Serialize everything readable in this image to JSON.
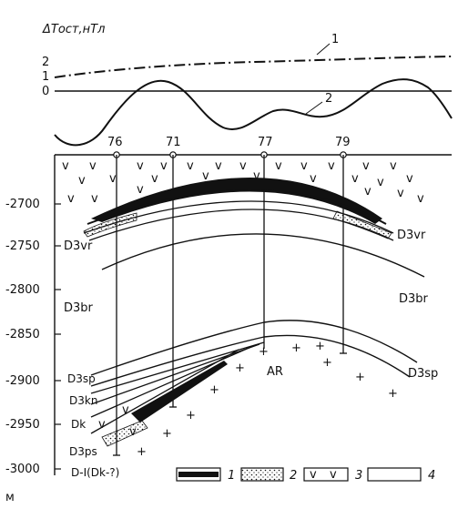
{
  "header": {
    "y_axis_title": "ΔTост,нТл",
    "anomaly_ticks": [
      "2",
      "1",
      "0"
    ],
    "curve_labels": [
      "1",
      "2"
    ]
  },
  "wells": [
    "76",
    "71",
    "77",
    "79"
  ],
  "depth_axis": {
    "ticks": [
      "-2700",
      "-2750",
      "-2800",
      "-2850",
      "-2900",
      "-2950",
      "-3000"
    ],
    "unit": "м"
  },
  "formations": {
    "d3vr_left": "D3vr",
    "d3vr_right": "D3vr",
    "d3br_left": "D3br",
    "d3br_right": "D3br",
    "d3sp_left": "D3sp",
    "d3sp_right": "D3sp",
    "d3kn": "D3kn",
    "dk": "Dk",
    "d3ps": "D3ps",
    "d1": "D-I(Dk-?)",
    "ar": "AR"
  },
  "legend": [
    {
      "number": "1",
      "description": "solid black fill"
    },
    {
      "number": "2",
      "description": "dotted pattern"
    },
    {
      "number": "3",
      "description": "v symbols"
    },
    {
      "number": "4",
      "description": "empty box"
    }
  ]
}
